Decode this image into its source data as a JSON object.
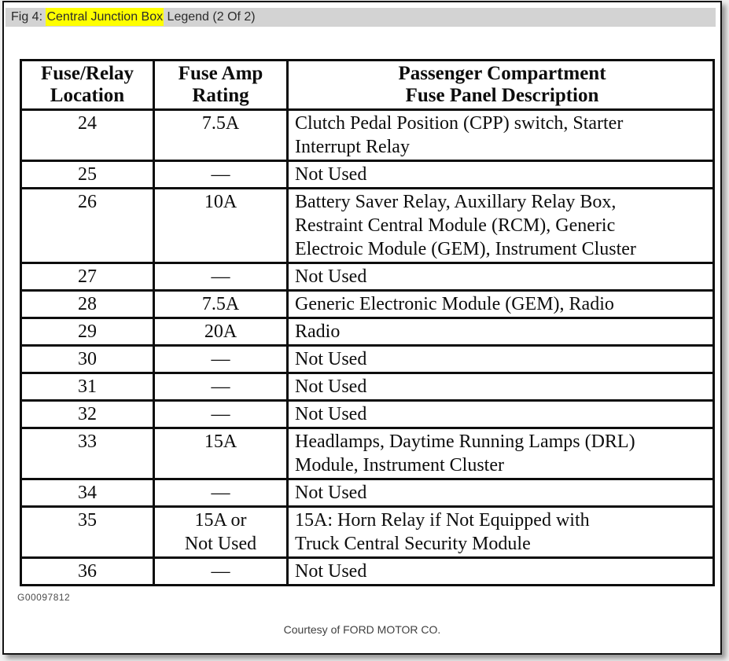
{
  "page": {
    "figure_label": {
      "prefix": "Fig 4: ",
      "highlight": "Central Junction Box",
      "suffix": " Legend (2 Of 2)"
    },
    "colors": {
      "highlight": "#ffff00",
      "titlebar_bg": "#d3d3d3"
    }
  },
  "table": {
    "headers": {
      "location": "Fuse/Relay\nLocation",
      "rating": "Fuse Amp\nRating",
      "description": "Passenger Compartment\nFuse Panel Description"
    },
    "rows": [
      {
        "location": "24",
        "rating": "7.5A",
        "description": "Clutch Pedal Position (CPP) switch, Starter\nInterrupt Relay"
      },
      {
        "location": "25",
        "rating": "—",
        "description": "Not Used"
      },
      {
        "location": "26",
        "rating": "10A",
        "description": "Battery Saver Relay, Auxillary Relay Box,\nRestraint Central Module (RCM), Generic\nElectroic Module (GEM), Instrument Cluster"
      },
      {
        "location": "27",
        "rating": "—",
        "description": "Not Used"
      },
      {
        "location": "28",
        "rating": "7.5A",
        "description": "Generic Electronic Module (GEM), Radio"
      },
      {
        "location": "29",
        "rating": "20A",
        "description": "Radio"
      },
      {
        "location": "30",
        "rating": "—",
        "description": "Not Used"
      },
      {
        "location": "31",
        "rating": "—",
        "description": "Not Used"
      },
      {
        "location": "32",
        "rating": "—",
        "description": "Not Used"
      },
      {
        "location": "33",
        "rating": "15A",
        "description": "Headlamps, Daytime Running Lamps (DRL)\nModule, Instrument Cluster"
      },
      {
        "location": "34",
        "rating": "—",
        "description": "Not Used"
      },
      {
        "location": "35",
        "rating": "15A or\nNot Used",
        "description": "15A: Horn Relay if Not Equipped with\nTruck Central Security Module"
      },
      {
        "location": "36",
        "rating": "—",
        "description": "Not Used"
      }
    ]
  },
  "figure_id": "G00097812",
  "footer": {
    "credit": "Courtesy of FORD MOTOR CO."
  }
}
